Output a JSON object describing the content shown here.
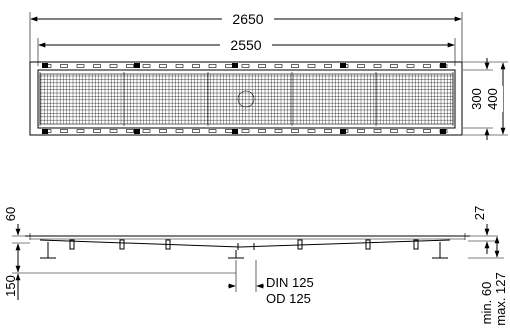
{
  "plan_view": {
    "dims": {
      "overall_length": "2650",
      "grate_length": "2550",
      "grate_width": "300",
      "overall_width": "400"
    }
  },
  "section_view": {
    "dims": {
      "flange_depth": "60",
      "leveling_height": "150",
      "channel_depth": "27",
      "outlet_din": "DIN 125",
      "outlet_od": "OD 125",
      "adjust_min": "min. 60",
      "adjust_max": "max. 127"
    }
  }
}
